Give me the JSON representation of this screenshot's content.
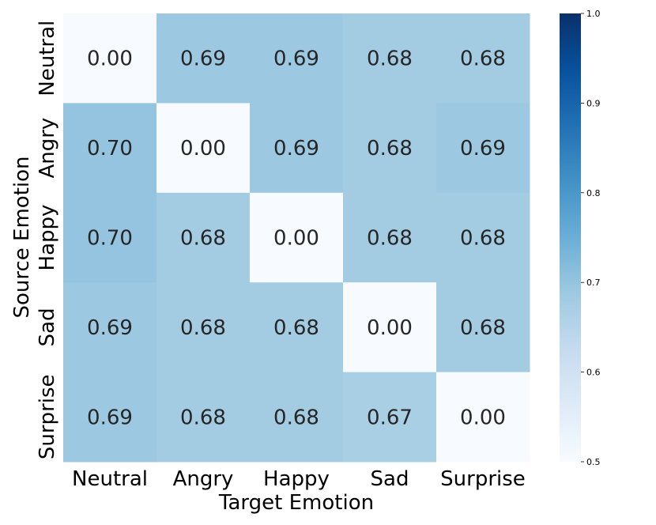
{
  "chart_data": {
    "type": "heatmap",
    "title": "",
    "xlabel": "Target Emotion",
    "ylabel": "Source Emotion",
    "x_categories": [
      "Neutral",
      "Angry",
      "Happy",
      "Sad",
      "Surprise"
    ],
    "y_categories": [
      "Neutral",
      "Angry",
      "Happy",
      "Sad",
      "Surprise"
    ],
    "values": [
      [
        0.0,
        0.69,
        0.69,
        0.68,
        0.68
      ],
      [
        0.7,
        0.0,
        0.69,
        0.68,
        0.69
      ],
      [
        0.7,
        0.68,
        0.0,
        0.68,
        0.68
      ],
      [
        0.69,
        0.68,
        0.68,
        0.0,
        0.68
      ],
      [
        0.69,
        0.68,
        0.68,
        0.67,
        0.0
      ]
    ],
    "cell_labels": [
      [
        "0.00",
        "0.69",
        "0.69",
        "0.68",
        "0.68"
      ],
      [
        "0.70",
        "0.00",
        "0.69",
        "0.68",
        "0.69"
      ],
      [
        "0.70",
        "0.68",
        "0.00",
        "0.68",
        "0.68"
      ],
      [
        "0.69",
        "0.68",
        "0.68",
        "0.00",
        "0.68"
      ],
      [
        "0.69",
        "0.68",
        "0.68",
        "0.67",
        "0.00"
      ]
    ],
    "colorbar": {
      "range": [
        0.5,
        1.0
      ],
      "ticks": [
        0.5,
        0.6,
        0.7,
        0.8,
        0.9,
        1.0
      ],
      "tick_labels": [
        "0.5",
        "0.6",
        "0.7",
        "0.8",
        "0.9",
        "1.0"
      ],
      "colormap": "Blues"
    }
  }
}
